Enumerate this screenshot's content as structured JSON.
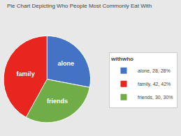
{
  "chart_data": {
    "type": "pie",
    "title": "Pie Chart Depicting Who People Most Commonly Eat With",
    "categories": [
      "alone",
      "friends",
      "family"
    ],
    "values": [
      28,
      30,
      42
    ],
    "colors": [
      "#4472C4",
      "#70AD47",
      "#E8251F"
    ],
    "legend_title": "withwho",
    "legend_entries": [
      {
        "label": "alone, 28, 28%",
        "color": "#4472C4"
      },
      {
        "label": "family, 42, 42%",
        "color": "#E8251F"
      },
      {
        "label": "friends, 30, 30%",
        "color": "#70AD47"
      }
    ]
  }
}
